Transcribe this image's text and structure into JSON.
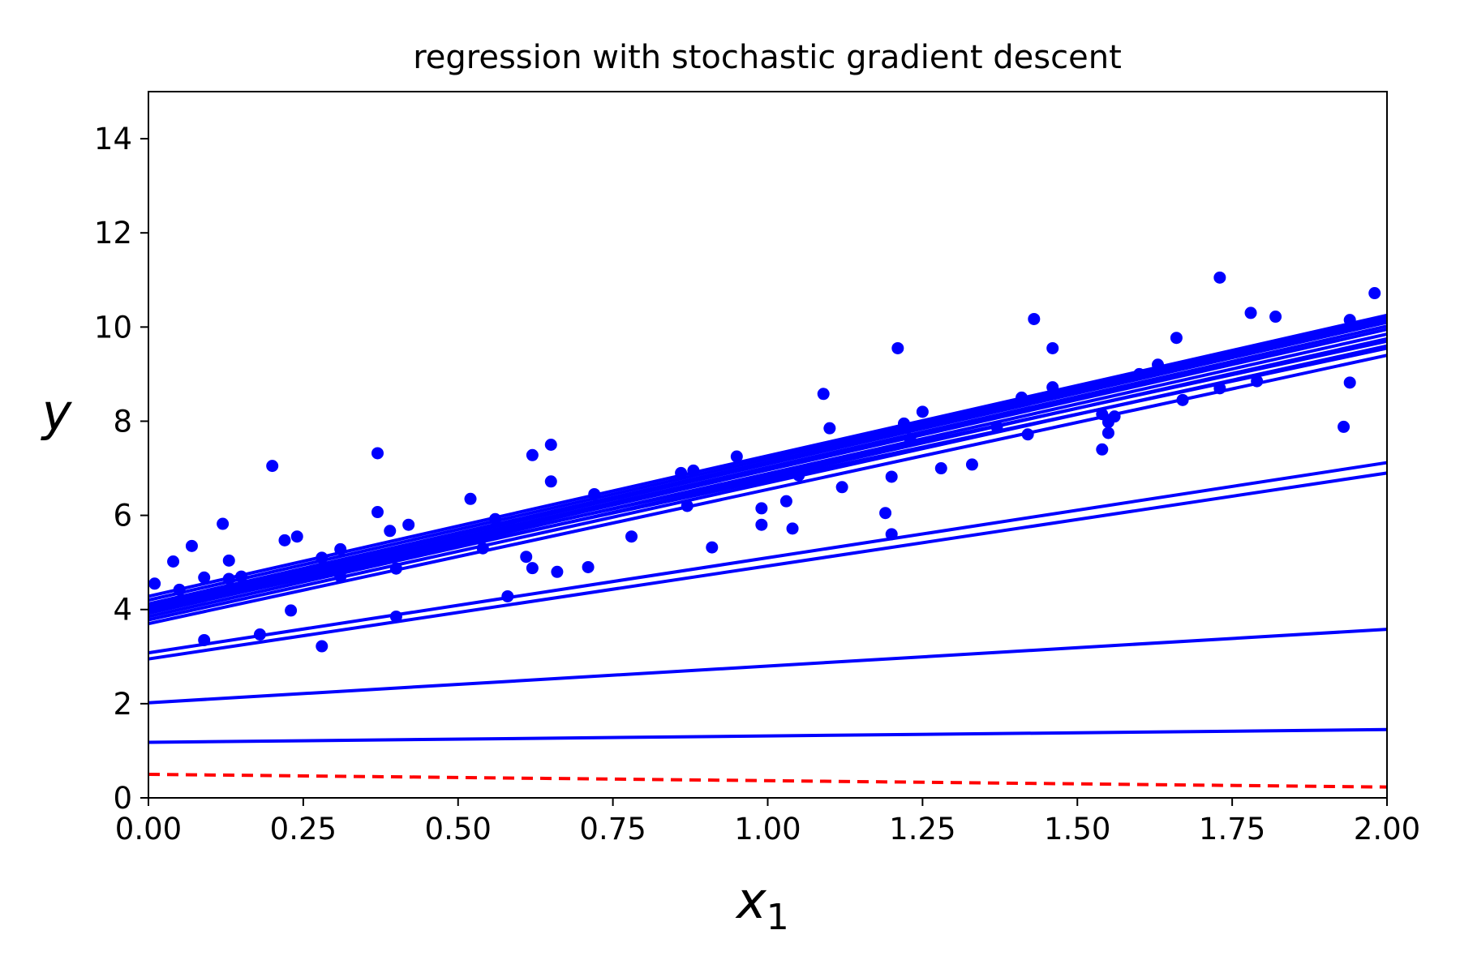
{
  "chart_data": {
    "type": "scatter",
    "title": "regression with stochastic gradient descent",
    "xlabel": {
      "main": "x",
      "sub": "1"
    },
    "ylabel": "y",
    "xlim": [
      0,
      2
    ],
    "ylim": [
      0,
      15
    ],
    "xticks": [
      "0.00",
      "0.25",
      "0.50",
      "0.75",
      "1.00",
      "1.25",
      "1.50",
      "1.75",
      "2.00"
    ],
    "yticks": [
      "0",
      "2",
      "4",
      "6",
      "8",
      "10",
      "12",
      "14"
    ],
    "grid": false,
    "colors": {
      "points": "#0000ff",
      "lines": "#0000ff",
      "initial_line": "#ff0000"
    },
    "points": {
      "x": [
        0.01,
        0.04,
        0.05,
        0.07,
        0.09,
        0.09,
        0.12,
        0.13,
        0.13,
        0.15,
        0.18,
        0.2,
        0.22,
        0.23,
        0.24,
        0.24,
        0.28,
        0.28,
        0.31,
        0.31,
        0.35,
        0.37,
        0.37,
        0.37,
        0.39,
        0.4,
        0.4,
        0.42,
        0.52,
        0.54,
        0.56,
        0.58,
        0.61,
        0.62,
        0.62,
        0.65,
        0.65,
        0.66,
        0.71,
        0.72,
        0.78,
        0.86,
        0.87,
        0.88,
        0.91,
        0.95,
        0.99,
        0.99,
        1.03,
        1.04,
        1.05,
        1.09,
        1.1,
        1.12,
        1.19,
        1.2,
        1.2,
        1.21,
        1.22,
        1.23,
        1.25,
        1.28,
        1.33,
        1.37,
        1.41,
        1.42,
        1.43,
        1.46,
        1.46,
        1.54,
        1.54,
        1.55,
        1.55,
        1.56,
        1.6,
        1.63,
        1.66,
        1.67,
        1.73,
        1.73,
        1.78,
        1.79,
        1.82,
        1.93,
        1.94,
        1.94,
        1.98
      ],
      "y": [
        4.55,
        5.02,
        4.42,
        5.35,
        4.68,
        3.35,
        5.82,
        5.04,
        4.65,
        4.7,
        3.47,
        7.05,
        5.47,
        3.98,
        5.55,
        4.72,
        5.1,
        3.22,
        5.28,
        4.7,
        5.05,
        6.07,
        7.32,
        5.08,
        5.67,
        4.87,
        3.85,
        5.8,
        6.35,
        5.3,
        5.92,
        4.28,
        5.12,
        7.28,
        4.88,
        7.5,
        6.72,
        4.8,
        4.9,
        6.45,
        5.55,
        6.9,
        6.2,
        6.95,
        5.32,
        7.25,
        6.15,
        5.8,
        6.3,
        5.72,
        6.85,
        8.58,
        7.85,
        6.6,
        6.05,
        5.6,
        6.82,
        9.55,
        7.95,
        7.62,
        8.2,
        7.0,
        7.08,
        7.88,
        8.5,
        7.72,
        10.17,
        9.55,
        8.72,
        8.15,
        7.4,
        7.75,
        7.98,
        8.1,
        9.0,
        9.2,
        9.77,
        8.45,
        11.05,
        8.7,
        10.3,
        8.85,
        10.22,
        7.88,
        10.15,
        8.82,
        10.72
      ]
    },
    "iteration_lines": [
      {
        "x": [
          0,
          2
        ],
        "y": [
          0.5,
          0.23
        ],
        "style": "dashed"
      },
      {
        "x": [
          0,
          2
        ],
        "y": [
          1.18,
          1.45
        ],
        "style": "solid"
      },
      {
        "x": [
          0,
          2
        ],
        "y": [
          2.02,
          3.58
        ],
        "style": "solid"
      },
      {
        "x": [
          0,
          2
        ],
        "y": [
          2.95,
          6.9
        ],
        "style": "solid"
      },
      {
        "x": [
          0,
          2
        ],
        "y": [
          3.08,
          7.12
        ],
        "style": "solid"
      },
      {
        "x": [
          0,
          2
        ],
        "y": [
          3.7,
          9.4
        ],
        "style": "solid"
      },
      {
        "x": [
          0,
          2
        ],
        "y": [
          3.78,
          9.6
        ],
        "style": "solid"
      },
      {
        "x": [
          0,
          2
        ],
        "y": [
          3.85,
          9.75
        ],
        "style": "solid"
      },
      {
        "x": [
          0,
          2
        ],
        "y": [
          3.92,
          9.85
        ],
        "style": "solid"
      },
      {
        "x": [
          0,
          2
        ],
        "y": [
          3.98,
          9.95
        ],
        "style": "solid"
      },
      {
        "x": [
          0,
          2
        ],
        "y": [
          4.02,
          10.02
        ],
        "style": "solid"
      },
      {
        "x": [
          0,
          2
        ],
        "y": [
          4.08,
          10.1
        ],
        "style": "solid"
      },
      {
        "x": [
          0,
          2
        ],
        "y": [
          4.12,
          10.15
        ],
        "style": "solid"
      },
      {
        "x": [
          0,
          2
        ],
        "y": [
          4.2,
          10.2
        ],
        "style": "solid"
      },
      {
        "x": [
          0,
          2
        ],
        "y": [
          4.28,
          10.25
        ],
        "style": "solid"
      },
      {
        "x": [
          0,
          2
        ],
        "y": [
          4.0,
          9.7
        ],
        "style": "solid"
      },
      {
        "x": [
          0,
          2
        ],
        "y": [
          3.95,
          9.55
        ],
        "style": "solid"
      }
    ]
  }
}
